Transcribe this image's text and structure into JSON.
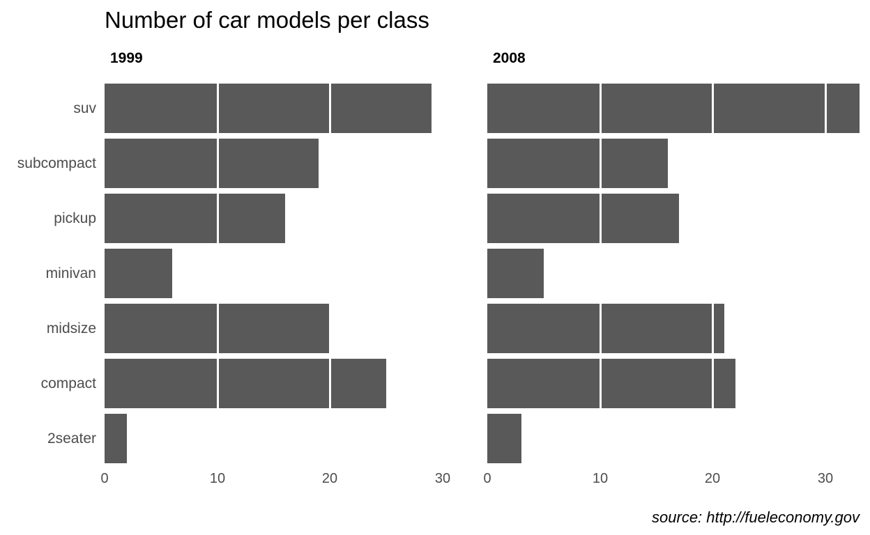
{
  "title": "Number of car models per class",
  "source_note": "source: http://fueleconomy.gov",
  "colors": {
    "bar": "#595959",
    "axis_text": "#4d4d4d",
    "title_text": "#000000",
    "gridline": "#ffffff",
    "background": "#ffffff"
  },
  "chart_data": {
    "type": "bar",
    "orientation": "horizontal",
    "title": "Number of car models per class",
    "categories": [
      "suv",
      "subcompact",
      "pickup",
      "minivan",
      "midsize",
      "compact",
      "2seater"
    ],
    "series": [
      {
        "name": "1999",
        "values": [
          29,
          19,
          16,
          6,
          20,
          25,
          2
        ]
      },
      {
        "name": "2008",
        "values": [
          33,
          16,
          17,
          5,
          21,
          22,
          3
        ]
      }
    ],
    "facets": "two side-by-side panels, one per year (1999 left, 2008 right), sharing the category axis",
    "xticks": [
      0,
      10,
      20,
      30
    ],
    "xlim": [
      0,
      33
    ],
    "ylabel": "",
    "xlabel": "",
    "grid": "major vertical gridlines in white drawn on top of bars (visible only where they cross bars)",
    "legend": "none",
    "annotation": "source: http://fueleconomy.gov"
  }
}
